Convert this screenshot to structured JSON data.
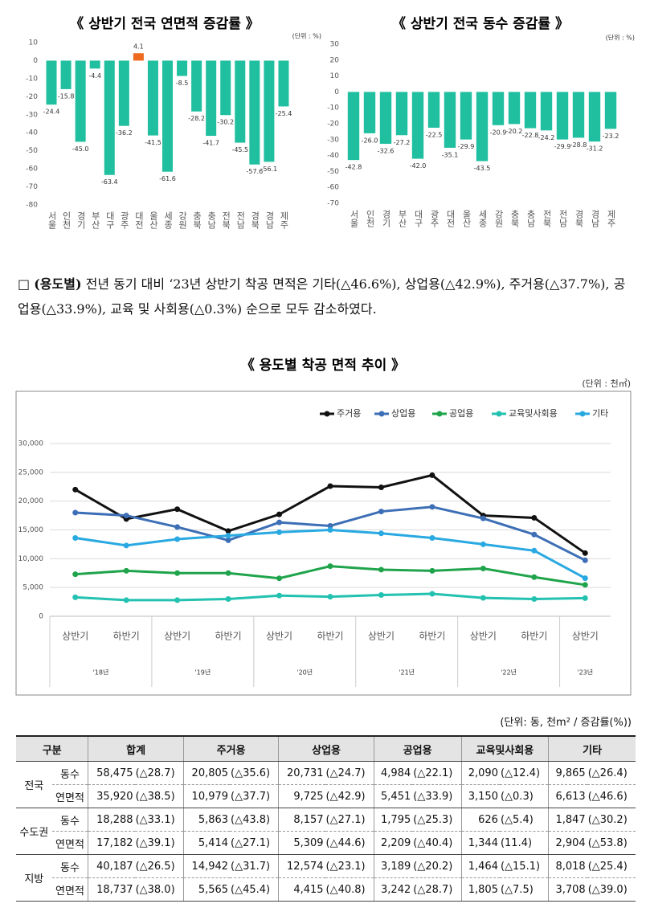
{
  "chart_data": [
    {
      "type": "bar",
      "title": "《 상반기 전국 연면적 증감률 》",
      "unit": "(단위 : %)",
      "categories": [
        "서울",
        "인천",
        "경기",
        "부산",
        "대구",
        "광주",
        "대전",
        "울산",
        "세종",
        "강원",
        "충북",
        "충남",
        "전북",
        "전남",
        "경북",
        "경남",
        "제주"
      ],
      "values": [
        -24.4,
        -15.8,
        -45.0,
        -4.4,
        -63.4,
        -36.2,
        4.1,
        -41.5,
        -61.6,
        -8.5,
        -28.2,
        -41.7,
        -30.2,
        -45.5,
        -57.6,
        -56.1,
        -25.4
      ],
      "value_labels": [
        "-24.4",
        "-15.8",
        "-45.0",
        "-4.4",
        "-63.4",
        "-36.2",
        "4.1",
        "-41.5",
        "-61.6",
        "-8.5",
        "-28.2",
        "-41.7",
        "-30.2",
        "-45.5",
        "-57.6",
        "-56.1",
        "-25.4"
      ],
      "colors": [
        "#1fbf9f",
        "#1fbf9f",
        "#1fbf9f",
        "#1fbf9f",
        "#1fbf9f",
        "#1fbf9f",
        "#ee6a1e",
        "#1fbf9f",
        "#1fbf9f",
        "#1fbf9f",
        "#1fbf9f",
        "#1fbf9f",
        "#1fbf9f",
        "#1fbf9f",
        "#1fbf9f",
        "#1fbf9f",
        "#1fbf9f"
      ],
      "ylim": [
        -80,
        10
      ],
      "yticks": [
        10,
        0,
        -10,
        -20,
        -30,
        -40,
        -50,
        -60,
        -70,
        -80
      ],
      "grid": false
    },
    {
      "type": "bar",
      "title": "《 상반기 전국 동수 증감률 》",
      "unit": "(단위 : %)",
      "categories": [
        "서울",
        "인천",
        "경기",
        "부산",
        "대구",
        "광주",
        "대전",
        "울산",
        "세종",
        "강원",
        "충북",
        "충남",
        "전북",
        "전남",
        "경북",
        "경남",
        "제주"
      ],
      "values": [
        -42.8,
        -26.0,
        -32.6,
        -27.2,
        -42.0,
        -22.5,
        -35.1,
        -29.9,
        -43.5,
        -20.9,
        -20.2,
        -22.8,
        -24.2,
        -29.9,
        -28.8,
        -31.2,
        -23.2
      ],
      "value_labels": [
        "-42.8",
        "-26.0",
        "-32.6",
        "-27.2",
        "-42.0",
        "-22.5",
        "-35.1",
        "-29.9",
        "-43.5",
        "-20.9",
        "-20.2",
        "-22.8",
        "-24.2",
        "-29.9",
        "-28.8",
        "-31.2",
        "-23.2"
      ],
      "colors": [
        "#1fbf9f",
        "#1fbf9f",
        "#1fbf9f",
        "#1fbf9f",
        "#1fbf9f",
        "#1fbf9f",
        "#1fbf9f",
        "#1fbf9f",
        "#1fbf9f",
        "#1fbf9f",
        "#1fbf9f",
        "#1fbf9f",
        "#1fbf9f",
        "#1fbf9f",
        "#1fbf9f",
        "#1fbf9f",
        "#1fbf9f"
      ],
      "ylim": [
        -70,
        30
      ],
      "yticks": [
        30,
        20,
        10,
        0,
        -10,
        -20,
        -30,
        -40,
        -50,
        -60,
        -70
      ],
      "grid": false
    },
    {
      "type": "line",
      "title": "《 용도별 착공 면적 추이 》",
      "unit": "(단위 : 천㎡)",
      "categories": [
        "상반기",
        "하반기",
        "상반기",
        "하반기",
        "상반기",
        "하반기",
        "상반기",
        "하반기",
        "상반기",
        "하반기",
        "상반기"
      ],
      "group_labels": [
        "'18년",
        null,
        "'19년",
        null,
        "'20년",
        null,
        "'21년",
        null,
        "'22년",
        null,
        "'23년"
      ],
      "series": [
        {
          "name": "주거용",
          "color": "#111111",
          "values": [
            22000,
            16900,
            18600,
            14800,
            17700,
            22600,
            22400,
            24500,
            17500,
            17100,
            10979
          ]
        },
        {
          "name": "상업용",
          "color": "#3d6fb6",
          "values": [
            18000,
            17500,
            15500,
            13200,
            16300,
            15700,
            18200,
            19000,
            17000,
            14200,
            9725
          ]
        },
        {
          "name": "공업용",
          "color": "#1fa44b",
          "values": [
            7300,
            7900,
            7500,
            7500,
            6600,
            8700,
            8100,
            7900,
            8300,
            6800,
            5451
          ]
        },
        {
          "name": "교육및사회용",
          "color": "#22c1b0",
          "values": [
            3300,
            2800,
            2800,
            3000,
            3600,
            3400,
            3700,
            3900,
            3200,
            3000,
            3150
          ]
        },
        {
          "name": "기타",
          "color": "#29a9e1",
          "values": [
            13600,
            12300,
            13400,
            14000,
            14600,
            15000,
            14400,
            13600,
            12500,
            11400,
            6613
          ]
        }
      ],
      "ylim": [
        0,
        30000
      ],
      "yticks": [
        {
          "value": 30000,
          "label": "30,000"
        },
        {
          "value": 25000,
          "label": "25,000"
        },
        {
          "value": 20000,
          "label": "20,000"
        },
        {
          "value": 15000,
          "label": "15,000"
        },
        {
          "value": 10000,
          "label": "10,000"
        },
        {
          "value": 5000,
          "label": "5,000"
        },
        0
      ],
      "grid": true,
      "legend": "top"
    }
  ],
  "paragraph": {
    "marker": "□",
    "heading": "(용도별)",
    "text": "전년 동기 대비 ‘23년 상반기 착공 면적은 기타(△46.6%), 상업용(△42.9%), 주거용(△37.7%), 공업용(△33.9%), 교육 및 사회용(△0.3%) 순으로 모두 감소하였다."
  },
  "table": {
    "unit": "(단위: 동, 천m² / 증감률(%))",
    "headers": [
      "구분",
      "합계",
      "주거용",
      "상업용",
      "공업용",
      "교육및사회용",
      "기타"
    ],
    "groups": [
      {
        "region": "전국",
        "rows": [
          {
            "metric": "동수",
            "cells": [
              "58,475",
              "(△28.7)",
              "20,805",
              "(△35.6)",
              "20,731",
              "(△24.7)",
              "4,984",
              "(△22.1)",
              "2,090",
              "(△12.4)",
              "9,865",
              "(△26.4)"
            ]
          },
          {
            "metric": "연면적",
            "cells": [
              "35,920",
              "(△38.5)",
              "10,979",
              "(△37.7)",
              "9,725",
              "(△42.9)",
              "5,451",
              "(△33.9)",
              "3,150",
              "(△0.3)",
              "6,613",
              "(△46.6)"
            ]
          }
        ]
      },
      {
        "region": "수도권",
        "rows": [
          {
            "metric": "동수",
            "cells": [
              "18,288",
              "(△33.1)",
              "5,863",
              "(△43.8)",
              "8,157",
              "(△27.1)",
              "1,795",
              "(△25.3)",
              "626",
              "(△5.4)",
              "1,847",
              "(△30.2)"
            ]
          },
          {
            "metric": "연면적",
            "cells": [
              "17,182",
              "(△39.1)",
              "5,414",
              "(△27.1)",
              "5,309",
              "(△44.6)",
              "2,209",
              "(△40.4)",
              "1,344",
              "(11.4)",
              "2,904",
              "(△53.8)"
            ]
          }
        ]
      },
      {
        "region": "지방",
        "rows": [
          {
            "metric": "동수",
            "cells": [
              "40,187",
              "(△26.5)",
              "14,942",
              "(△31.7)",
              "12,574",
              "(△23.1)",
              "3,189",
              "(△20.2)",
              "1,464",
              "(△15.1)",
              "8,018",
              "(△25.4)"
            ]
          },
          {
            "metric": "연면적",
            "cells": [
              "18,737",
              "(△38.0)",
              "5,565",
              "(△45.4)",
              "4,415",
              "(△40.8)",
              "3,242",
              "(△28.7)",
              "1,805",
              "(△7.5)",
              "3,708",
              "(△39.0)"
            ]
          }
        ]
      }
    ]
  }
}
